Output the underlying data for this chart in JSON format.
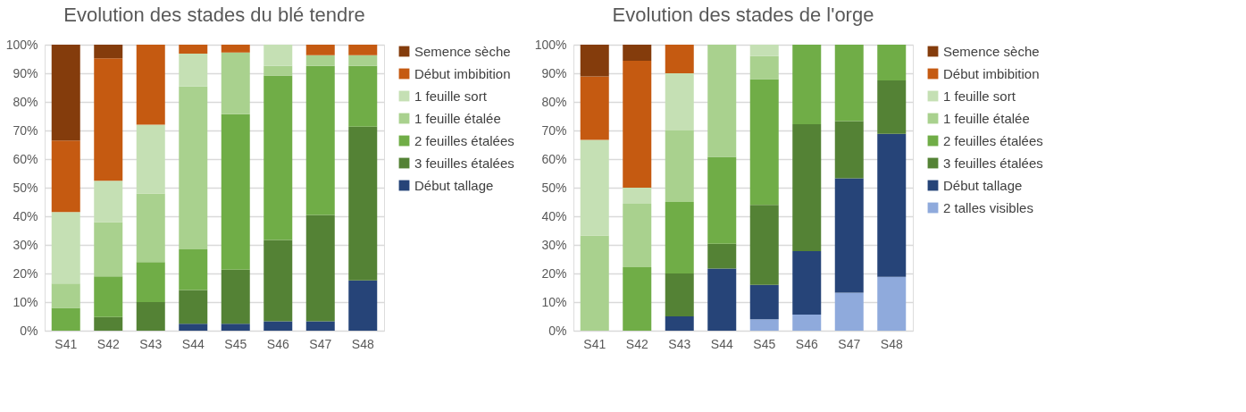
{
  "chart_data": [
    {
      "type": "bar",
      "title": "Evolution des stades du blé tendre",
      "stacked": true,
      "legend": "right",
      "grid": "y",
      "categories": [
        "S41",
        "S42",
        "S43",
        "S44",
        "S45",
        "S46",
        "S47",
        "S48"
      ],
      "ylim": [
        0,
        100
      ],
      "yticks": [
        {
          "value": 0,
          "label": "0%"
        },
        {
          "value": 10,
          "label": "10%"
        },
        {
          "value": 20,
          "label": "20%"
        },
        {
          "value": 30,
          "label": "30%"
        },
        {
          "value": 40,
          "label": "40%"
        },
        {
          "value": 50,
          "label": "50%"
        },
        {
          "value": 60,
          "label": "60%"
        },
        {
          "value": 70,
          "label": "70%"
        },
        {
          "value": 80,
          "label": "80%"
        },
        {
          "value": 90,
          "label": "90%"
        },
        {
          "value": 100,
          "label": "100%"
        }
      ],
      "series": [
        {
          "name": "Début tallage",
          "color": "#264478",
          "values": [
            0,
            0,
            0,
            2.4,
            2.4,
            3.3,
            3.3,
            17.6
          ]
        },
        {
          "name": "3 feuilles étalées",
          "color": "#548235",
          "values": [
            0,
            4.8,
            10,
            11.8,
            18.9,
            28.4,
            37.2,
            53.7
          ]
        },
        {
          "name": "2 feuilles étalées",
          "color": "#70ad47",
          "values": [
            8,
            14.2,
            14,
            14.2,
            54.4,
            57.5,
            52.1,
            21.3
          ]
        },
        {
          "name": "1 feuille étalée",
          "color": "#a9d18e",
          "values": [
            8.5,
            19,
            24,
            57,
            21.6,
            3.4,
            3.7,
            3.7
          ]
        },
        {
          "name": "1 feuille sort",
          "color": "#c5e0b4",
          "values": [
            25,
            14.4,
            24,
            11.5,
            0,
            7.4,
            0,
            0
          ]
        },
        {
          "name": "Début imbibition",
          "color": "#c55a11",
          "values": [
            25,
            42.8,
            28,
            3.1,
            2.7,
            0,
            3.7,
            3.7
          ]
        },
        {
          "name": "Semence sèche",
          "color": "#843c0c",
          "values": [
            33.5,
            4.8,
            0,
            0,
            0,
            0,
            0,
            0
          ]
        }
      ]
    },
    {
      "type": "bar",
      "title": "Evolution des stades de l'orge",
      "stacked": true,
      "legend": "right",
      "grid": "y",
      "categories": [
        "S41",
        "S42",
        "S43",
        "S44",
        "S45",
        "S46",
        "S47",
        "S48"
      ],
      "ylim": [
        0,
        100
      ],
      "yticks": [
        {
          "value": 0,
          "label": "0%"
        },
        {
          "value": 10,
          "label": "10%"
        },
        {
          "value": 20,
          "label": "20%"
        },
        {
          "value": 30,
          "label": "30%"
        },
        {
          "value": 40,
          "label": "40%"
        },
        {
          "value": 50,
          "label": "50%"
        },
        {
          "value": 60,
          "label": "60%"
        },
        {
          "value": 70,
          "label": "70%"
        },
        {
          "value": 80,
          "label": "80%"
        },
        {
          "value": 90,
          "label": "90%"
        },
        {
          "value": 100,
          "label": "100%"
        }
      ],
      "series": [
        {
          "name": "2 talles visibles",
          "color": "#8faadc",
          "values": [
            0,
            0,
            0,
            0,
            4,
            5.6,
            13.3,
            18.8
          ]
        },
        {
          "name": "Début tallage",
          "color": "#264478",
          "values": [
            0,
            0,
            5,
            21.7,
            12,
            22.2,
            40,
            50
          ]
        },
        {
          "name": "3 feuilles étalées",
          "color": "#548235",
          "values": [
            0,
            0,
            15,
            8.7,
            28,
            44.4,
            20,
            18.7
          ]
        },
        {
          "name": "2 feuilles étalées",
          "color": "#70ad47",
          "values": [
            0,
            22.2,
            25,
            30.4,
            44,
            27.8,
            26.7,
            12.5
          ]
        },
        {
          "name": "1 feuille étalée",
          "color": "#a9d18e",
          "values": [
            33.3,
            22.2,
            25,
            39.2,
            8,
            0,
            0,
            0
          ]
        },
        {
          "name": "1 feuille sort",
          "color": "#c5e0b4",
          "values": [
            33.4,
            5.6,
            20,
            0,
            4,
            0,
            0,
            0
          ]
        },
        {
          "name": "Début imbibition",
          "color": "#c55a11",
          "values": [
            22.2,
            44.4,
            10,
            0,
            0,
            0,
            0,
            0
          ]
        },
        {
          "name": "Semence sèche",
          "color": "#843c0c",
          "values": [
            11.1,
            5.6,
            0,
            0,
            0,
            0,
            0,
            0
          ]
        }
      ]
    }
  ]
}
